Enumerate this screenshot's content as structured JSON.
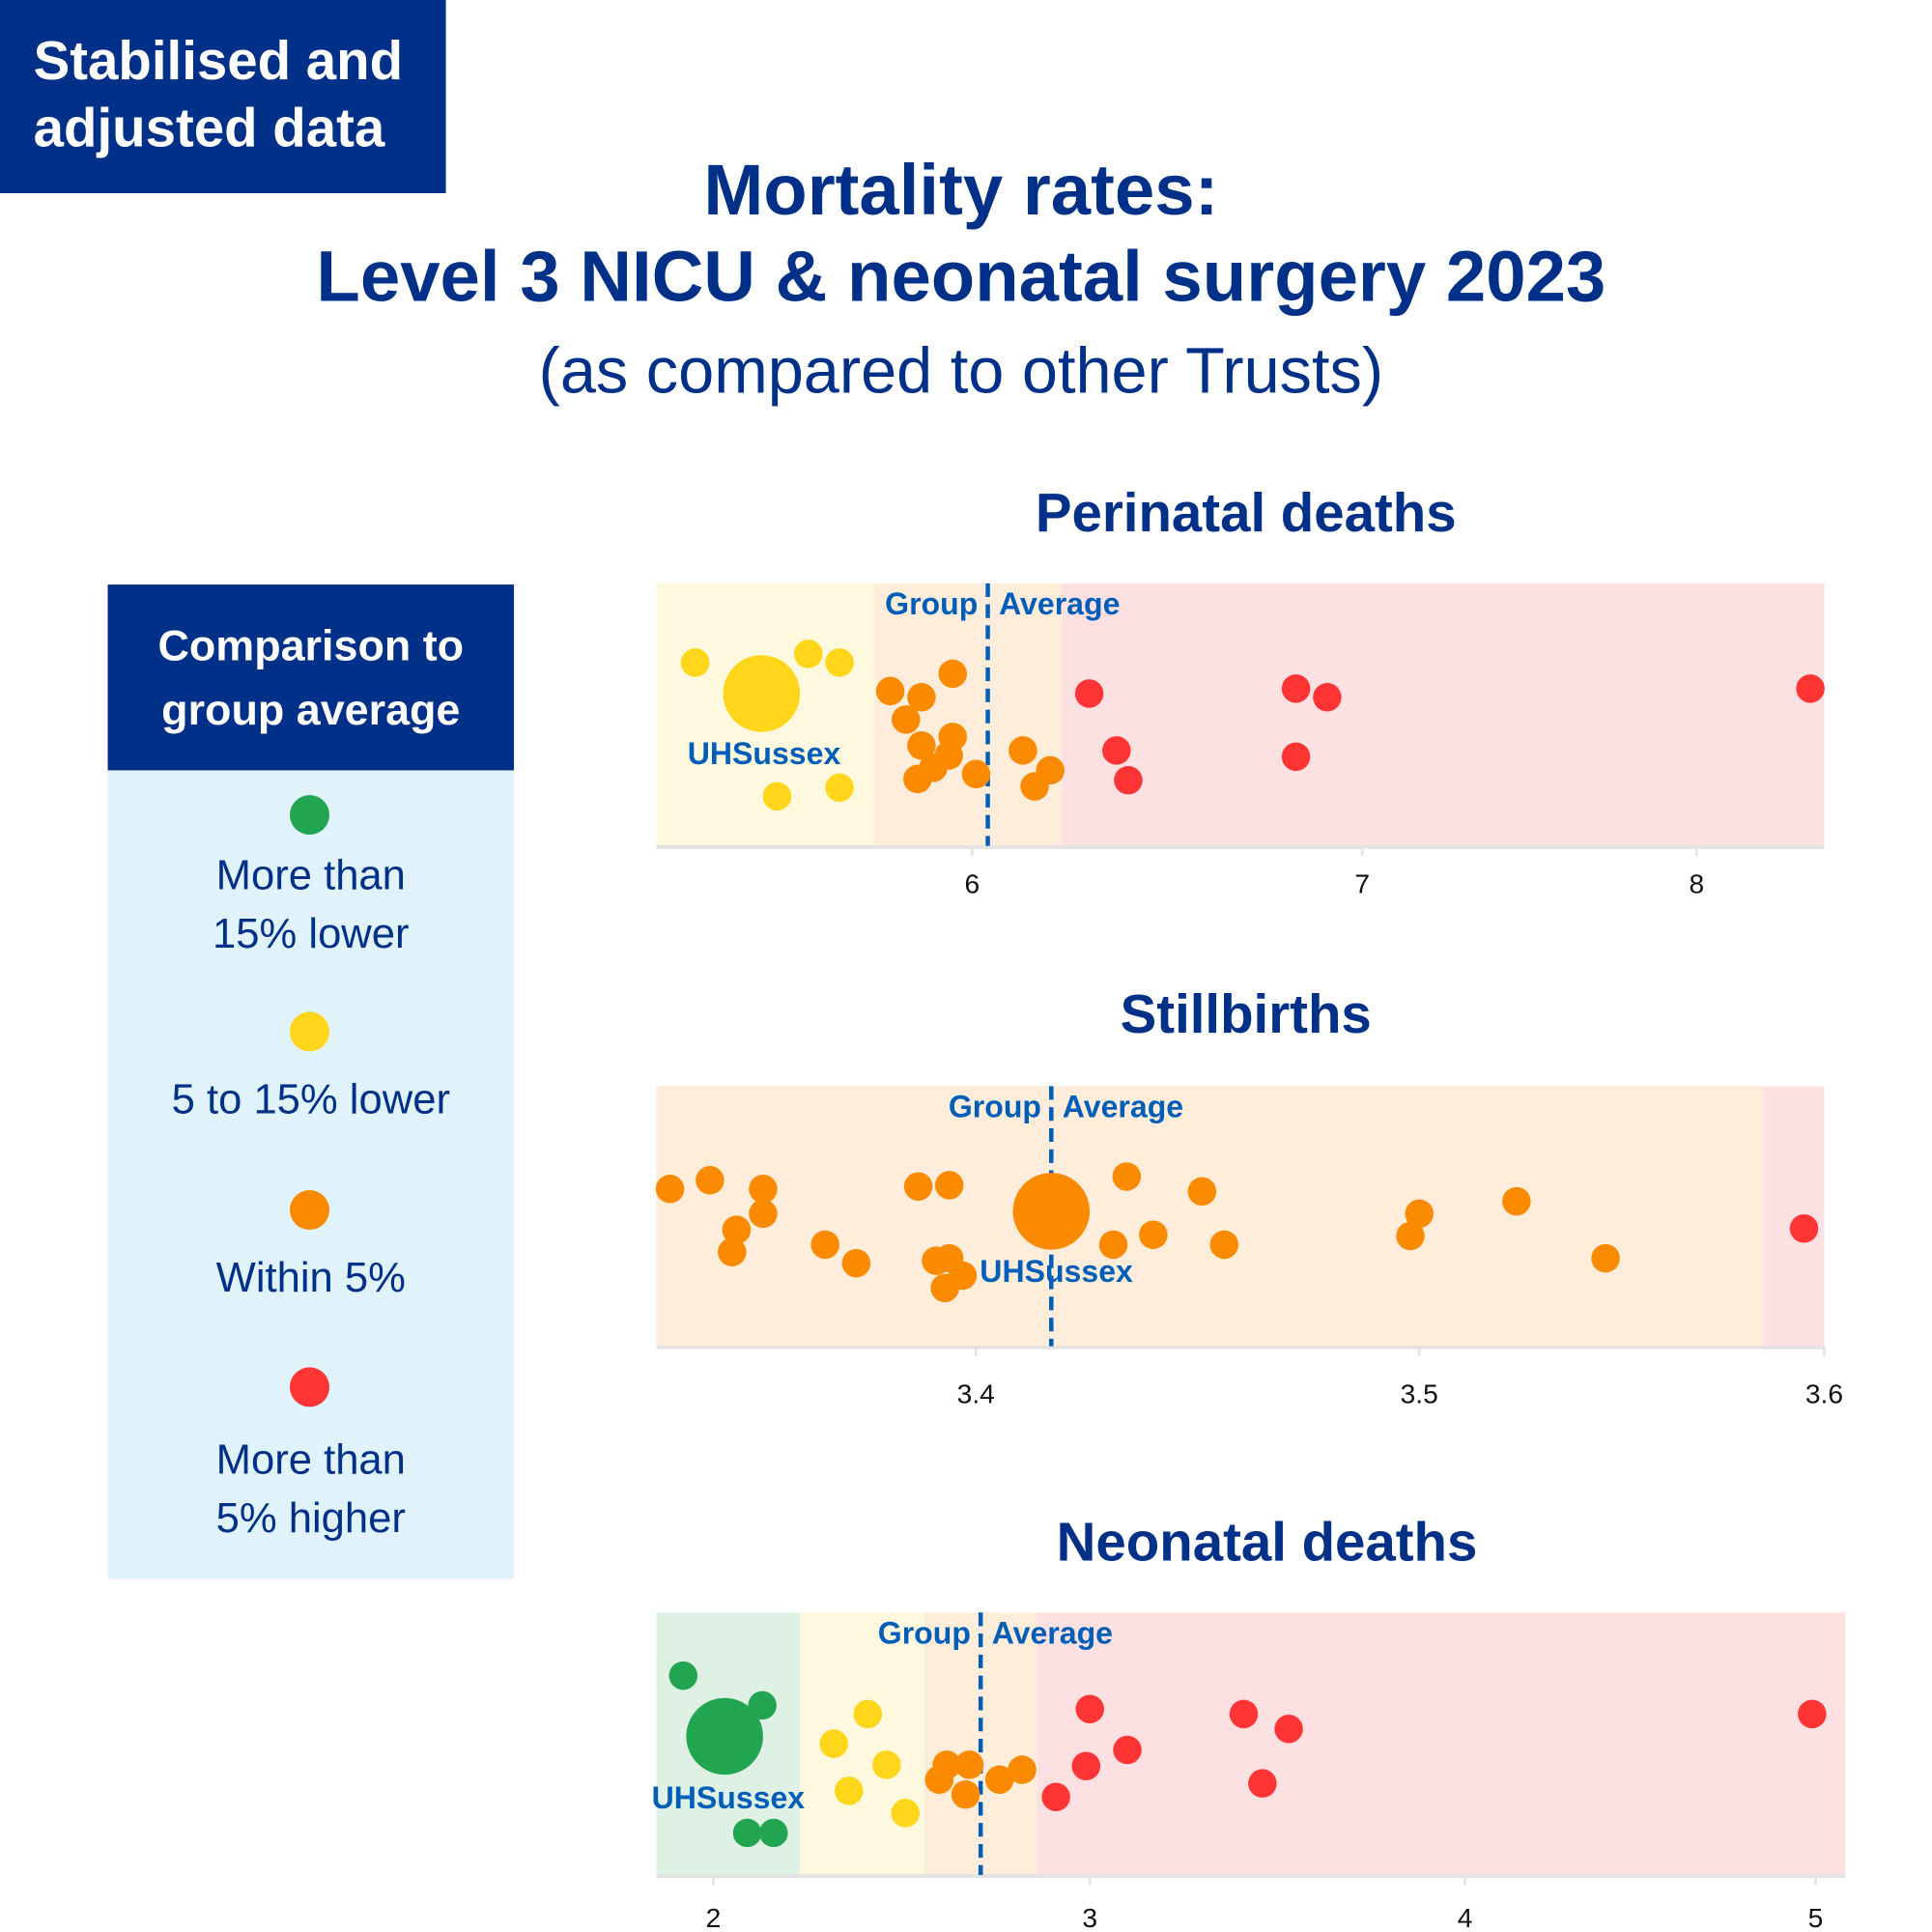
{
  "badge": {
    "line1": "Stabilised and",
    "line2": "adjusted data"
  },
  "title": {
    "line1": "Mortality rates:",
    "line2": "Level 3 NICU & neonatal surgery 2023",
    "subtitle": "(as compared to other Trusts)"
  },
  "colors": {
    "navy": "#003087",
    "blue": "#005EB8",
    "green": "#22A550",
    "yellow": "#FFD619",
    "orange": "#FA8A00",
    "red": "#FF3434",
    "band_green": "#DFF0E5",
    "band_yellow": "#FEF8DE",
    "band_orange": "#FDEDDA",
    "band_red": "#FDE0E1",
    "legend_bg": "#E1F3FA"
  },
  "legend": {
    "title_line1": "Comparison to",
    "title_line2": "group average",
    "items": [
      {
        "category": "green",
        "line1": "More than",
        "line2": "15% lower"
      },
      {
        "category": "yellow",
        "line1": "5 to 15% lower",
        "line2": ""
      },
      {
        "category": "orange",
        "line1": "Within 5%",
        "line2": ""
      },
      {
        "category": "red",
        "line1": "More than",
        "line2": "5% higher"
      }
    ]
  },
  "chart_data": [
    {
      "type": "scatter",
      "title": "Perinatal deaths",
      "average_label_left": "Group",
      "average_label_right": "Average",
      "highlight_label": "UHSussex",
      "ticks": [
        6,
        7,
        8
      ],
      "tick_labels": [
        "6",
        "7",
        "8"
      ],
      "xlim": [
        5.19,
        8.38
      ],
      "average": 6.04,
      "highlight_value": 5.46,
      "highlight_category": "yellow",
      "bands": [
        {
          "from": 5.19,
          "to": 5.75,
          "category": "yellow"
        },
        {
          "from": 5.75,
          "to": 6.23,
          "category": "orange"
        },
        {
          "from": 6.23,
          "to": 8.38,
          "category": "red"
        }
      ],
      "points": [
        {
          "value": 5.29,
          "category": "yellow"
        },
        {
          "value": 5.58,
          "category": "yellow"
        },
        {
          "value": 5.66,
          "category": "yellow"
        },
        {
          "value": 5.5,
          "category": "yellow"
        },
        {
          "value": 5.66,
          "category": "yellow"
        },
        {
          "value": 5.79,
          "category": "orange"
        },
        {
          "value": 5.87,
          "category": "orange"
        },
        {
          "value": 5.95,
          "category": "orange"
        },
        {
          "value": 5.83,
          "category": "orange"
        },
        {
          "value": 5.87,
          "category": "orange"
        },
        {
          "value": 5.95,
          "category": "orange"
        },
        {
          "value": 5.94,
          "category": "orange"
        },
        {
          "value": 5.9,
          "category": "orange"
        },
        {
          "value": 5.86,
          "category": "orange"
        },
        {
          "value": 6.01,
          "category": "orange"
        },
        {
          "value": 6.13,
          "category": "orange"
        },
        {
          "value": 6.2,
          "category": "orange"
        },
        {
          "value": 6.16,
          "category": "orange"
        },
        {
          "value": 6.3,
          "category": "red"
        },
        {
          "value": 6.37,
          "category": "red"
        },
        {
          "value": 6.4,
          "category": "red"
        },
        {
          "value": 6.83,
          "category": "red"
        },
        {
          "value": 6.91,
          "category": "red"
        },
        {
          "value": 6.83,
          "category": "red"
        },
        {
          "value": 8.34,
          "category": "red"
        }
      ]
    },
    {
      "type": "scatter",
      "title": "Stillbirths",
      "average_label_left": "Group",
      "average_label_right": "Average",
      "highlight_label": "UHSussex",
      "ticks": [
        3.4,
        3.5,
        3.6
      ],
      "tick_labels": [
        "3.4",
        "3.5",
        "3.6"
      ],
      "xlim": [
        3.328,
        3.6
      ],
      "average": 3.417,
      "highlight_value": 3.417,
      "highlight_category": "orange",
      "bands": [
        {
          "from": 3.328,
          "to": 3.585,
          "category": "orange"
        },
        {
          "from": 3.585,
          "to": 3.6,
          "category": "red"
        }
      ],
      "points": [
        {
          "value": 3.331,
          "category": "orange"
        },
        {
          "value": 3.34,
          "category": "orange"
        },
        {
          "value": 3.352,
          "category": "orange"
        },
        {
          "value": 3.352,
          "category": "orange"
        },
        {
          "value": 3.346,
          "category": "orange"
        },
        {
          "value": 3.345,
          "category": "orange"
        },
        {
          "value": 3.366,
          "category": "orange"
        },
        {
          "value": 3.373,
          "category": "orange"
        },
        {
          "value": 3.387,
          "category": "orange"
        },
        {
          "value": 3.394,
          "category": "orange"
        },
        {
          "value": 3.391,
          "category": "orange"
        },
        {
          "value": 3.394,
          "category": "orange"
        },
        {
          "value": 3.397,
          "category": "orange"
        },
        {
          "value": 3.393,
          "category": "orange"
        },
        {
          "value": 3.434,
          "category": "orange"
        },
        {
          "value": 3.451,
          "category": "orange"
        },
        {
          "value": 3.431,
          "category": "orange"
        },
        {
          "value": 3.44,
          "category": "orange"
        },
        {
          "value": 3.456,
          "category": "orange"
        },
        {
          "value": 3.5,
          "category": "orange"
        },
        {
          "value": 3.498,
          "category": "orange"
        },
        {
          "value": 3.524,
          "category": "orange"
        },
        {
          "value": 3.546,
          "category": "orange"
        },
        {
          "value": 3.595,
          "category": "red"
        }
      ]
    },
    {
      "type": "scatter",
      "title": "Neonatal deaths",
      "average_label_left": "Group",
      "average_label_right": "Average",
      "highlight_label": "UHSussex",
      "ticks": [
        2,
        3,
        4,
        5
      ],
      "tick_labels": [
        "2",
        "3",
        "4",
        "5"
      ],
      "xlim": [
        1.85,
        5.08
      ],
      "average": 2.71,
      "highlight_value": 2.03,
      "highlight_category": "green",
      "bands": [
        {
          "from": 1.85,
          "to": 2.23,
          "category": "green"
        },
        {
          "from": 2.23,
          "to": 2.56,
          "category": "yellow"
        },
        {
          "from": 2.56,
          "to": 2.86,
          "category": "orange"
        },
        {
          "from": 2.86,
          "to": 5.08,
          "category": "red"
        }
      ],
      "points": [
        {
          "value": 1.92,
          "category": "green"
        },
        {
          "value": 2.13,
          "category": "green"
        },
        {
          "value": 2.09,
          "category": "green"
        },
        {
          "value": 2.16,
          "category": "green"
        },
        {
          "value": 2.41,
          "category": "yellow"
        },
        {
          "value": 2.32,
          "category": "yellow"
        },
        {
          "value": 2.46,
          "category": "yellow"
        },
        {
          "value": 2.36,
          "category": "yellow"
        },
        {
          "value": 2.51,
          "category": "yellow"
        },
        {
          "value": 2.62,
          "category": "orange"
        },
        {
          "value": 2.68,
          "category": "orange"
        },
        {
          "value": 2.6,
          "category": "orange"
        },
        {
          "value": 2.67,
          "category": "orange"
        },
        {
          "value": 2.76,
          "category": "orange"
        },
        {
          "value": 2.82,
          "category": "orange"
        },
        {
          "value": 3.0,
          "category": "red"
        },
        {
          "value": 2.99,
          "category": "red"
        },
        {
          "value": 3.1,
          "category": "red"
        },
        {
          "value": 2.91,
          "category": "red"
        },
        {
          "value": 3.41,
          "category": "red"
        },
        {
          "value": 3.53,
          "category": "red"
        },
        {
          "value": 3.46,
          "category": "red"
        },
        {
          "value": 4.99,
          "category": "red"
        }
      ]
    }
  ]
}
